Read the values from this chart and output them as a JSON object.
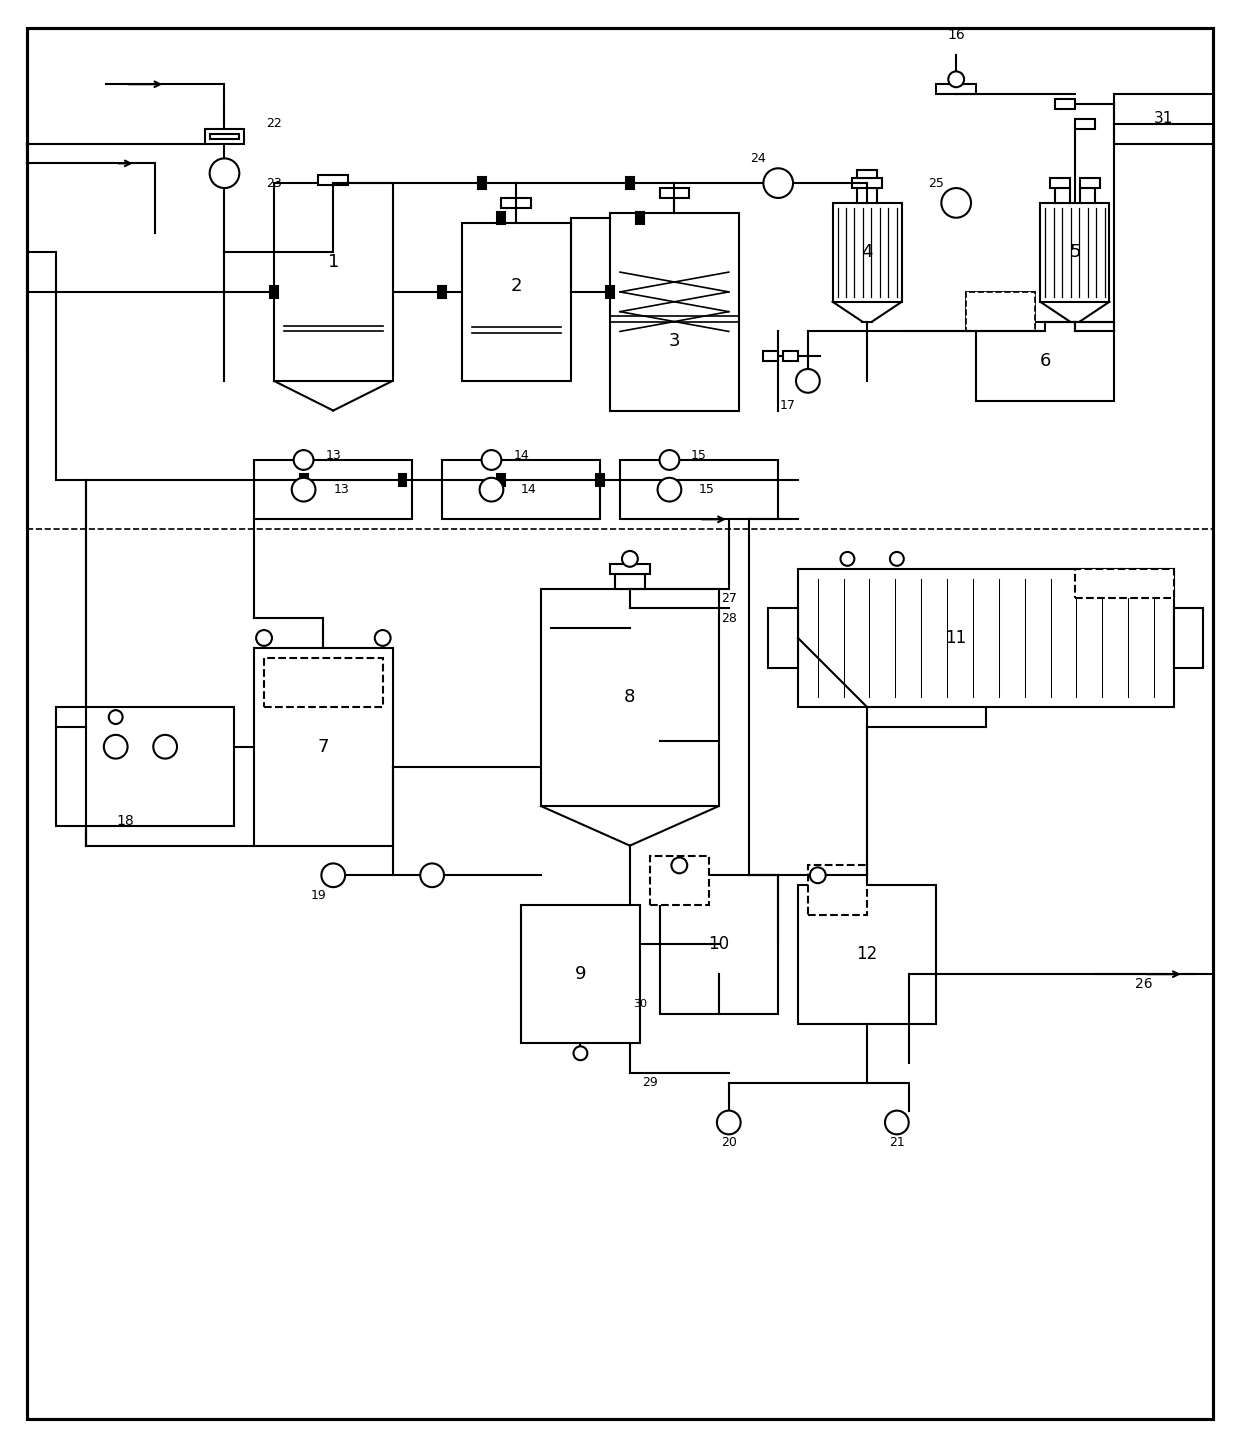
{
  "bg_color": "#ffffff",
  "line_color": "#000000",
  "line_width": 1.5,
  "fig_width": 12.4,
  "fig_height": 14.47
}
